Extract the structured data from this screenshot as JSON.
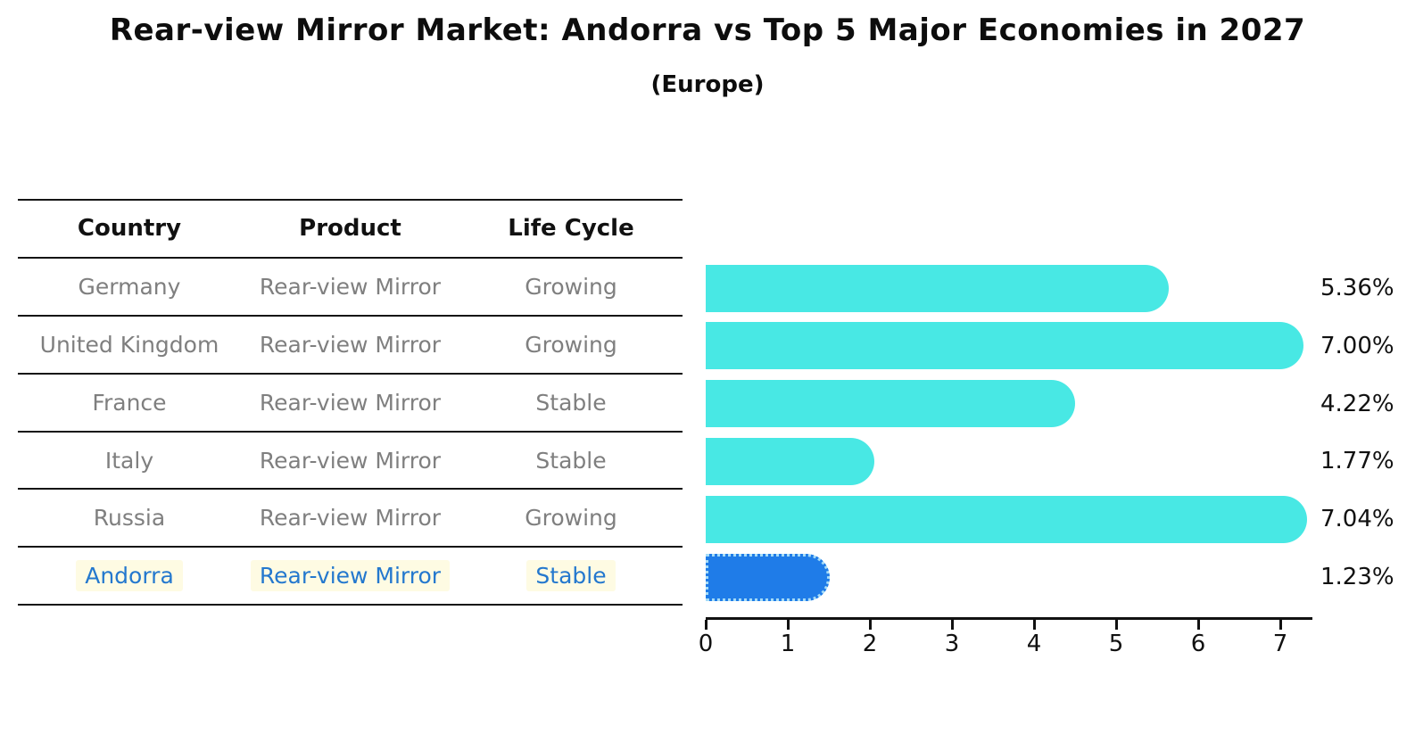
{
  "title": "Rear-view Mirror Market: Andorra vs Top 5 Major Economies in 2027",
  "subtitle": "(Europe)",
  "table": {
    "headers": [
      "Country",
      "Product",
      "Life Cycle"
    ],
    "rows": [
      {
        "country": "Germany",
        "product": "Rear-view Mirror",
        "life_cycle": "Growing",
        "highlight": false
      },
      {
        "country": "United Kingdom",
        "product": "Rear-view Mirror",
        "life_cycle": "Growing",
        "highlight": false
      },
      {
        "country": "France",
        "product": "Rear-view Mirror",
        "life_cycle": "Stable",
        "highlight": false
      },
      {
        "country": "Italy",
        "product": "Rear-view Mirror",
        "life_cycle": "Stable",
        "highlight": false
      },
      {
        "country": "Russia",
        "product": "Rear-view Mirror",
        "life_cycle": "Growing",
        "highlight": false
      },
      {
        "country": "Andorra",
        "product": "Rear-view Mirror",
        "life_cycle": "Stable",
        "highlight": true
      }
    ]
  },
  "chart_data": {
    "type": "bar",
    "orientation": "horizontal",
    "categories": [
      "Germany",
      "United Kingdom",
      "France",
      "Italy",
      "Russia",
      "Andorra"
    ],
    "values": [
      5.36,
      7.0,
      4.22,
      1.77,
      7.04,
      1.23
    ],
    "value_labels": [
      "5.36%",
      "7.00%",
      "4.22%",
      "1.77%",
      "7.04%",
      "1.23%"
    ],
    "xticks": [
      0,
      1,
      2,
      3,
      4,
      5,
      6,
      7
    ],
    "xlim": [
      0,
      7.39
    ],
    "grid": false,
    "legend": "none",
    "bar_color": "#48E8E4",
    "highlight_color": "#1F7CE8",
    "highlight_index": 5,
    "axis_color": "#111111"
  },
  "colors": {
    "header_text": "#111111",
    "body_text": "#7f7f7f",
    "highlight_text": "#2478CE",
    "highlight_bg": "#FEFBE3",
    "background": "#ffffff"
  }
}
